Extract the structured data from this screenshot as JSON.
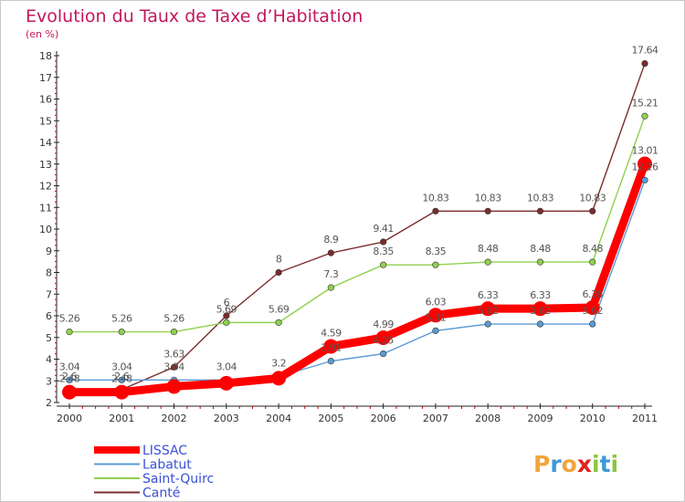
{
  "header": {
    "title": "Evolution du Taux de Taxe d’Habitation",
    "subtitle": "(en %)"
  },
  "brand": {
    "letters": [
      "P",
      "r",
      "o",
      "x",
      "i",
      "t",
      "i"
    ],
    "colors": [
      "#f3a43b",
      "#3d9ad6",
      "#f3a43b",
      "#e2231a",
      "#8cc63f",
      "#3d9ad6",
      "#8cc63f"
    ]
  },
  "chart_data": {
    "type": "line",
    "title": "Evolution du Taux de Taxe d’Habitation",
    "ylabel": "(en %)",
    "x": [
      "2000",
      "2001",
      "2002",
      "2003",
      "2004",
      "2005",
      "2006",
      "2007",
      "2008",
      "2009",
      "2010",
      "2011"
    ],
    "ylim": [
      2,
      18
    ],
    "yticks": [
      2,
      3,
      4,
      5,
      6,
      7,
      8,
      9,
      10,
      11,
      12,
      13,
      14,
      15,
      16,
      17,
      18
    ],
    "grid": false,
    "legend_position": "bottom-left",
    "series": [
      {
        "name": "LISSAC",
        "color": "#ff0000",
        "values": [
          2.48,
          2.48,
          2.74,
          2.89,
          3.12,
          4.59,
          4.99,
          6.03,
          6.33,
          6.33,
          6.38,
          13.01
        ],
        "labels": [
          "2.48",
          "2.48",
          "",
          "",
          "",
          "4.59",
          "4.99",
          "6.03",
          "6.33",
          "6.33",
          "6.38",
          "13.01"
        ]
      },
      {
        "name": "Labatut",
        "color": "#5b9bd5",
        "values": [
          3.04,
          3.04,
          3.04,
          3.04,
          3.2,
          3.91,
          4.25,
          5.31,
          5.62,
          5.62,
          5.62,
          12.26
        ],
        "labels": [
          "3.04",
          "3.04",
          "3.04",
          "3.04",
          "3.2",
          "3.91",
          "4.25",
          "5.31",
          "5.62",
          "5.62",
          "5.62",
          "12.26"
        ]
      },
      {
        "name": "Saint-Quirc",
        "color": "#8fd14f",
        "values": [
          5.26,
          5.26,
          5.26,
          5.69,
          5.69,
          7.3,
          8.35,
          8.35,
          8.48,
          8.48,
          8.48,
          15.21
        ],
        "labels": [
          "5.26",
          "5.26",
          "5.26",
          "5.69",
          "5.69",
          "7.3",
          "8.35",
          "8.35",
          "8.48",
          "8.48",
          "8.48",
          "15.21"
        ]
      },
      {
        "name": "Canté",
        "color": "#7b2c2c",
        "values": [
          2.6,
          2.6,
          3.63,
          6.0,
          8.0,
          8.9,
          9.41,
          10.83,
          10.83,
          10.83,
          10.83,
          17.64
        ],
        "labels": [
          "2.6",
          "2.6",
          "3.63",
          "6",
          "8",
          "8.9",
          "9.41",
          "10.83",
          "10.83",
          "10.83",
          "10.83",
          "17.64"
        ]
      }
    ]
  }
}
